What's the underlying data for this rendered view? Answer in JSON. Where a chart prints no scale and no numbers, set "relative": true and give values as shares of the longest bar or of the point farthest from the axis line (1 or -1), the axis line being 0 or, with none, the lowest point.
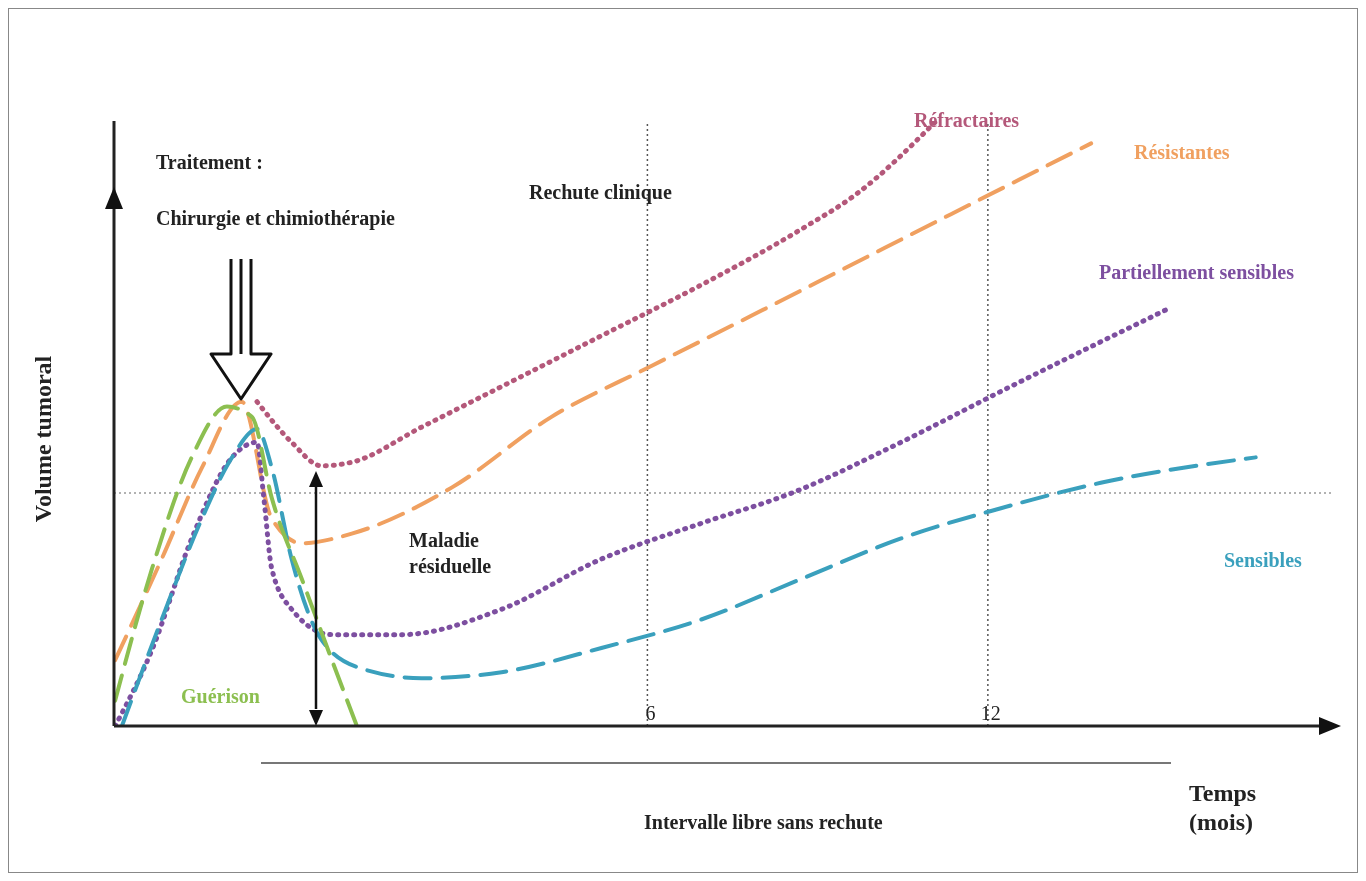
{
  "chart_data": {
    "type": "line",
    "relative": true,
    "xlabel": "Temps (mois)",
    "ylabel": "Volume tumoral",
    "xlim": [
      -3.4,
      18.1
    ],
    "xticks": [
      6,
      12
    ],
    "tick_labels": "x",
    "marker": "none",
    "series": [
      {
        "name": "Réfractaires",
        "color": "#b4587a",
        "line_style": "dotted",
        "x": [
          -0.88,
          -0.27,
          0.26,
          0.79,
          2.02,
          3.43,
          5.19,
          6.95,
          8.71,
          9.68,
          11.09
        ],
        "values": [
          0.536,
          0.469,
          0.43,
          0.436,
          0.494,
          0.561,
          0.645,
          0.729,
          0.821,
          0.879,
          1.0
        ]
      },
      {
        "name": "Résistantes",
        "color": "#f0a060",
        "line_style": "dashed",
        "x": [
          -3.38,
          -2.56,
          -1.85,
          -1.15,
          -0.62,
          -0.09,
          0.79,
          2.55,
          4.31,
          6.07,
          7.83,
          9.59,
          11.35,
          13.82
        ],
        "values": [
          0.109,
          0.276,
          0.427,
          0.536,
          0.343,
          0.302,
          0.318,
          0.394,
          0.511,
          0.595,
          0.678,
          0.762,
          0.846,
          0.963
        ]
      },
      {
        "name": "Partiellement sensibles",
        "color": "#7d4fa0",
        "line_style": "dotted",
        "x": [
          -3.38,
          -2.73,
          -2.03,
          -1.32,
          -0.88,
          -0.76,
          -0.62,
          -0.27,
          0.44,
          1.67,
          3.43,
          5.19,
          6.95,
          8.54,
          10.47,
          12.23,
          15.23
        ],
        "values": [
          0,
          0.126,
          0.31,
          0.444,
          0.469,
          0.377,
          0.26,
          0.193,
          0.151,
          0.151,
          0.193,
          0.276,
          0.335,
          0.385,
          0.469,
          0.553,
          0.692
        ]
      },
      {
        "name": "Sensibles",
        "color": "#3aa0bd",
        "line_style": "dashed",
        "x": [
          -3.26,
          -2.56,
          -1.85,
          -1.32,
          -0.88,
          -0.62,
          -0.27,
          0.26,
          0.96,
          2.02,
          3.43,
          5.19,
          6.95,
          8.71,
          10.47,
          12.23,
          13.99,
          16.72
        ],
        "values": [
          0,
          0.176,
          0.343,
          0.444,
          0.491,
          0.427,
          0.276,
          0.142,
          0.095,
          0.079,
          0.089,
          0.129,
          0.176,
          0.243,
          0.31,
          0.36,
          0.402,
          0.444
        ]
      },
      {
        "name": "Guérison",
        "color": "#8cbf50",
        "line_style": "dashed",
        "x": [
          -3.38,
          -2.73,
          -2.03,
          -1.41,
          -0.97,
          -0.62,
          -0.09,
          0.44,
          0.88
        ],
        "values": [
          0.042,
          0.26,
          0.444,
          0.528,
          0.511,
          0.377,
          0.243,
          0.109,
          0
        ]
      }
    ],
    "ref_lines": [
      {
        "axis": "y",
        "value": 0.385,
        "color": "#999999",
        "line_style": "dotted"
      },
      {
        "axis": "x",
        "value": 6,
        "color": "#555555",
        "line_style": "dotted"
      },
      {
        "axis": "x",
        "value": 12,
        "color": "#555555",
        "line_style": "dotted"
      }
    ],
    "annotations": [
      "Traitement :",
      "Chirurgie et chimiothérapie",
      "Rechute clinique",
      "Maladie résiduelle",
      "Intervalle libre sans rechute"
    ]
  }
}
